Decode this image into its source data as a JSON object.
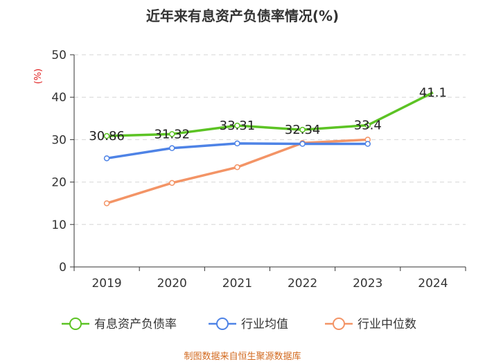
{
  "chart_data": {
    "type": "line",
    "title": "近年来有息资产负债率情况(%)",
    "unit_label": "(%)",
    "categories": [
      "2019",
      "2020",
      "2021",
      "2022",
      "2023",
      "2024"
    ],
    "ylim": [
      0,
      50
    ],
    "yticks": [
      "0",
      "10",
      "20",
      "30",
      "40",
      "50"
    ],
    "grid": true,
    "legend_position": "bottom",
    "series": [
      {
        "name": "有息资产负债率",
        "color": "#5cc324",
        "values": [
          30.86,
          31.32,
          33.31,
          32.34,
          33.4,
          41.1
        ],
        "labels": [
          "30.86",
          "31.32",
          "33.31",
          "32.34",
          "33.4",
          "41.1"
        ]
      },
      {
        "name": "行业均值",
        "color": "#4e83e6",
        "values": [
          25.6,
          28.0,
          29.1,
          29.0,
          29.0,
          null
        ]
      },
      {
        "name": "行业中位数",
        "color": "#f39466",
        "values": [
          15.0,
          19.8,
          23.5,
          29.2,
          30.0,
          null
        ]
      }
    ],
    "source": "制图数据来自恒生聚源数据库"
  }
}
